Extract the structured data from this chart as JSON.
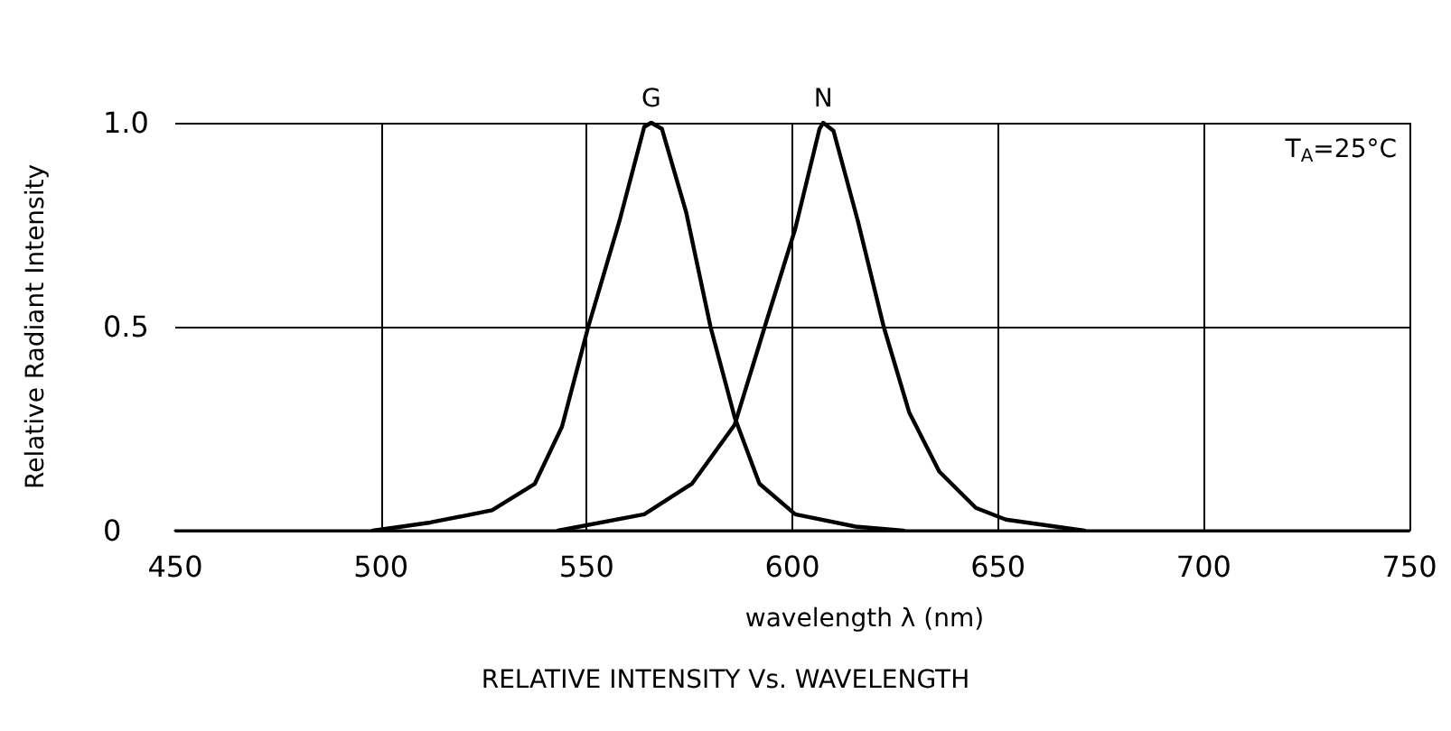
{
  "chart_data": {
    "type": "line",
    "title": "RELATIVE INTENSITY Vs. WAVELENGTH",
    "xlabel": "wavelength λ (nm)",
    "ylabel": "Relative Radiant Intensity",
    "annotations": [
      "T$_{A}$=25°C"
    ],
    "series": [
      {
        "name": "G",
        "color": "#000000",
        "x": [
          498,
          512,
          527,
          537.4,
          544,
          550.4,
          558,
          564,
          565.7,
          568.3,
          574.2,
          580.1,
          586,
          592,
          600.7,
          615.4,
          627
        ],
        "values": [
          0,
          0.02,
          0.05,
          0.115,
          0.255,
          0.5,
          0.76,
          0.99,
          1.0,
          0.985,
          0.78,
          0.5,
          0.277,
          0.115,
          0.04,
          0.01,
          0
        ]
      },
      {
        "name": "N",
        "color": "#000000",
        "x": [
          543,
          564,
          575.6,
          586,
          593.3,
          600.7,
          606.6,
          607.5,
          610,
          615.9,
          622.2,
          628.4,
          635.7,
          644.6,
          651.9,
          671
        ],
        "values": [
          0,
          0.04,
          0.115,
          0.26,
          0.5,
          0.74,
          0.985,
          1.0,
          0.98,
          0.76,
          0.5,
          0.29,
          0.145,
          0.056,
          0.027,
          0
        ]
      }
    ],
    "xlim": [
      450,
      750
    ],
    "xticks": [
      450,
      500,
      550,
      600,
      650,
      700,
      750
    ],
    "ylim": [
      0,
      1
    ],
    "yticks": [
      0,
      0.5,
      {
        "value": 1,
        "label": "1.0"
      }
    ],
    "grid": true,
    "legend": false,
    "marker": "none",
    "line_style": "solid"
  }
}
